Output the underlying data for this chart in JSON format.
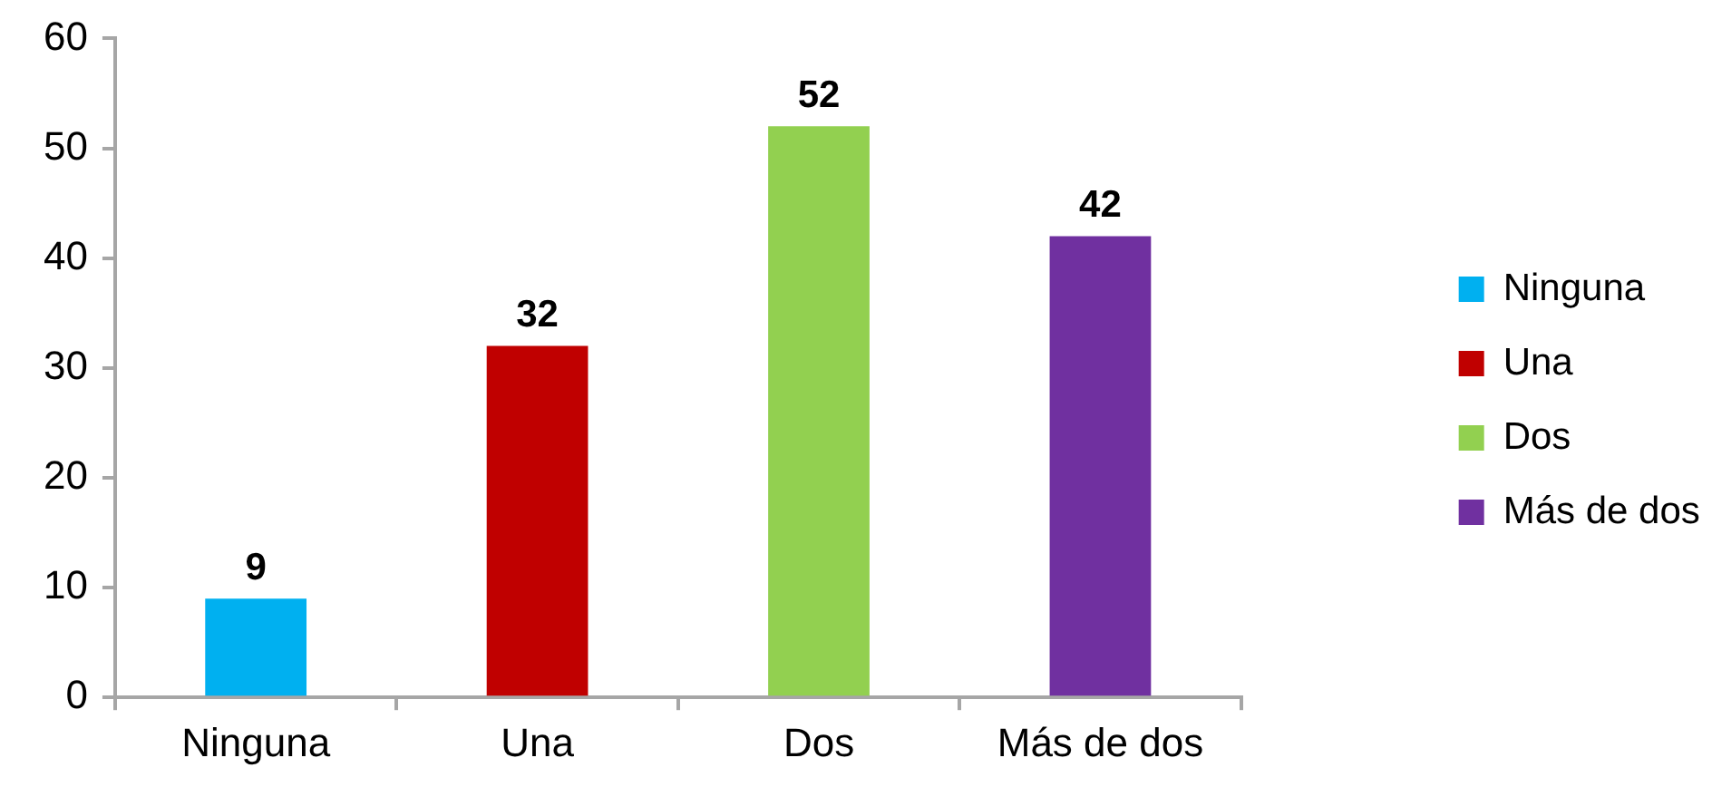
{
  "chart_data": {
    "type": "bar",
    "categories": [
      "Ninguna",
      "Una",
      "Dos",
      "Más de dos"
    ],
    "series": [
      {
        "name": "Ninguna",
        "color": "#00b0f0",
        "values": [
          9,
          null,
          null,
          null
        ]
      },
      {
        "name": "Una",
        "color": "#c00000",
        "values": [
          null,
          32,
          null,
          null
        ]
      },
      {
        "name": "Dos",
        "color": "#92d050",
        "values": [
          null,
          null,
          52,
          null
        ]
      },
      {
        "name": "Más de dos",
        "color": "#7030a0",
        "values": [
          null,
          null,
          null,
          42
        ]
      }
    ],
    "ylim": [
      0,
      60
    ],
    "yticks": [
      0,
      10,
      20,
      30,
      40,
      50,
      60
    ],
    "grid": false,
    "legend": "right",
    "data_labels": true
  }
}
